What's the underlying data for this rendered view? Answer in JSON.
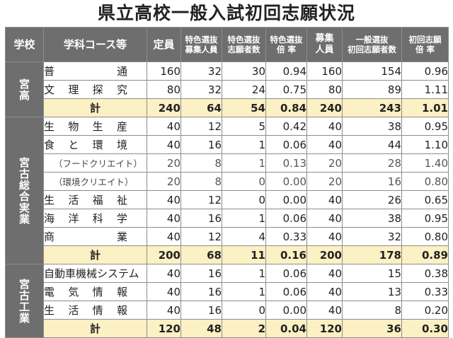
{
  "title": "県立高校一般入試初回志願状況",
  "headers": {
    "school": "学校",
    "course": "学科コース等",
    "capacity": "定員",
    "special_quota": [
      "特色選抜",
      "募集人員"
    ],
    "special_applicants": [
      "特色選抜",
      "志願者数"
    ],
    "special_ratio": [
      "特色選抜",
      "倍 率"
    ],
    "general_quota": [
      "募集",
      "人員"
    ],
    "general_applicants": [
      "一般選抜",
      "初回志願者数"
    ],
    "initial_ratio": [
      "初回志願",
      "倍 率"
    ]
  },
  "schools": [
    {
      "name": "宮高",
      "rows": [
        {
          "course": "普通",
          "spread": true,
          "values": [
            "160",
            "32",
            "30",
            "0.94",
            "160",
            "154",
            "0.96"
          ]
        },
        {
          "course": "文理探究",
          "spread": true,
          "values": [
            "80",
            "32",
            "24",
            "0.75",
            "80",
            "89",
            "1.11"
          ]
        },
        {
          "course": "計",
          "total": true,
          "values": [
            "240",
            "64",
            "54",
            "0.84",
            "240",
            "243",
            "1.01"
          ]
        }
      ]
    },
    {
      "name": "宮古総合実業",
      "rows": [
        {
          "course": "生物生産",
          "spread": true,
          "values": [
            "40",
            "12",
            "5",
            "0.42",
            "40",
            "38",
            "0.95"
          ]
        },
        {
          "course": "食と環境",
          "spread": true,
          "values": [
            "40",
            "16",
            "1",
            "0.06",
            "40",
            "44",
            "1.10"
          ]
        },
        {
          "course": "（フードクリエイト）",
          "sub": true,
          "values": [
            "20",
            "8",
            "1",
            "0.13",
            "20",
            "28",
            "1.40"
          ]
        },
        {
          "course": "（環境クリエイト）",
          "sub": true,
          "values": [
            "20",
            "8",
            "0",
            "0.00",
            "20",
            "16",
            "0.80"
          ]
        },
        {
          "course": "生活福祉",
          "spread": true,
          "values": [
            "40",
            "12",
            "0",
            "0.00",
            "40",
            "26",
            "0.65"
          ]
        },
        {
          "course": "海洋科学",
          "spread": true,
          "values": [
            "40",
            "16",
            "1",
            "0.06",
            "40",
            "38",
            "0.95"
          ]
        },
        {
          "course": "商業",
          "spread": true,
          "values": [
            "40",
            "12",
            "4",
            "0.33",
            "40",
            "32",
            "0.80"
          ]
        },
        {
          "course": "計",
          "total": true,
          "values": [
            "200",
            "68",
            "11",
            "0.16",
            "200",
            "178",
            "0.89"
          ]
        }
      ]
    },
    {
      "name": "宮古工業",
      "rows": [
        {
          "course": "自動車機械システム",
          "values": [
            "40",
            "16",
            "1",
            "0.06",
            "40",
            "15",
            "0.38"
          ]
        },
        {
          "course": "電気情報",
          "spread": true,
          "values": [
            "40",
            "16",
            "1",
            "0.06",
            "40",
            "13",
            "0.33"
          ]
        },
        {
          "course": "生活情報",
          "spread": true,
          "values": [
            "40",
            "16",
            "0",
            "0.00",
            "40",
            "8",
            "0.20"
          ]
        },
        {
          "course": "計",
          "total": true,
          "values": [
            "120",
            "48",
            "2",
            "0.04",
            "120",
            "36",
            "0.30"
          ]
        }
      ]
    }
  ]
}
